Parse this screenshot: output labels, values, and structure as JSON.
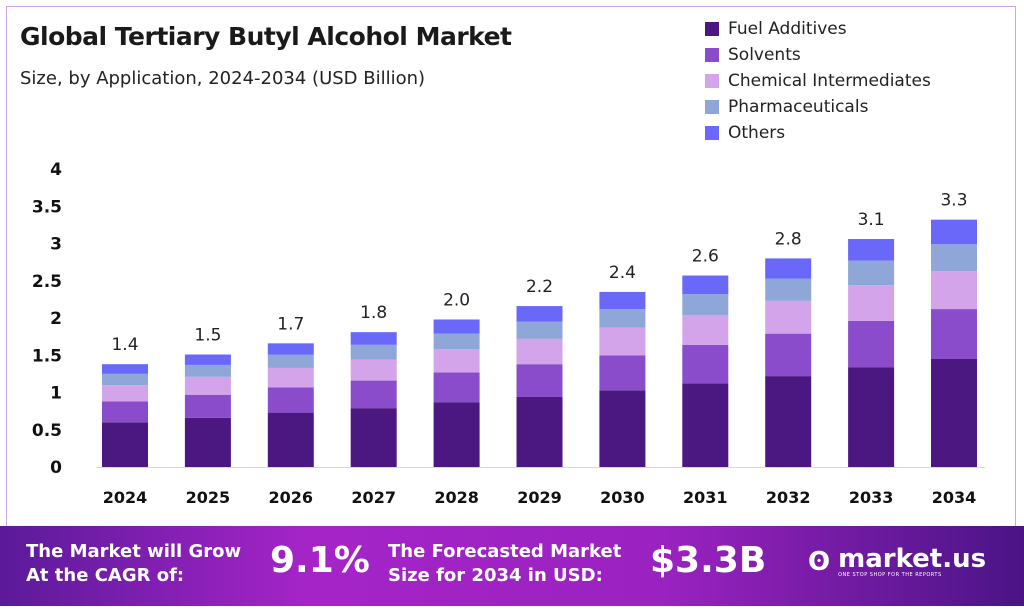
{
  "colors": {
    "Fuel Additives": "#4b1882",
    "Solvents": "#8a4ccb",
    "Chemical Intermediates": "#d3a4ea",
    "Pharmaceuticals": "#8fa6d9",
    "Others": "#6a68f8"
  },
  "chart_data": {
    "type": "bar",
    "stacked": true,
    "title": "Global Tertiary Butyl Alcohol Market",
    "subtitle": "Size, by Application, 2024-2034 (USD Billion)",
    "xlabel": "",
    "ylabel": "",
    "ylim": [
      0,
      4
    ],
    "yticks": [
      "0",
      "0.5",
      "1",
      "1.5",
      "2",
      "2.5",
      "3",
      "3.5",
      "4"
    ],
    "grid": false,
    "legend_position": "top-right",
    "categories": [
      "2024",
      "2025",
      "2026",
      "2027",
      "2028",
      "2029",
      "2030",
      "2031",
      "2032",
      "2033",
      "2034"
    ],
    "series": [
      {
        "name": "Fuel Additives",
        "values": [
          0.6,
          0.66,
          0.73,
          0.79,
          0.87,
          0.94,
          1.03,
          1.12,
          1.22,
          1.34,
          1.45
        ]
      },
      {
        "name": "Solvents",
        "values": [
          0.28,
          0.31,
          0.34,
          0.37,
          0.4,
          0.44,
          0.47,
          0.52,
          0.57,
          0.62,
          0.67
        ]
      },
      {
        "name": "Chemical Intermediates",
        "values": [
          0.22,
          0.24,
          0.26,
          0.28,
          0.31,
          0.34,
          0.37,
          0.4,
          0.44,
          0.48,
          0.51
        ]
      },
      {
        "name": "Pharmaceuticals",
        "values": [
          0.15,
          0.16,
          0.18,
          0.2,
          0.21,
          0.23,
          0.25,
          0.28,
          0.3,
          0.33,
          0.36
        ]
      },
      {
        "name": "Others",
        "values": [
          0.13,
          0.14,
          0.15,
          0.17,
          0.19,
          0.21,
          0.23,
          0.25,
          0.27,
          0.29,
          0.33
        ]
      }
    ],
    "total_labels": [
      "1.4",
      "1.5",
      "1.7",
      "1.8",
      "2.0",
      "2.2",
      "2.4",
      "2.6",
      "2.8",
      "3.1",
      "3.3"
    ]
  },
  "banner": {
    "cagr_text_line1": "The Market will Grow",
    "cagr_text_line2": "At the CAGR of:",
    "cagr_value": "9.1%",
    "forecast_text_line1": "The Forecasted Market",
    "forecast_text_line2": "Size for 2034 in USD:",
    "forecast_value": "$3.3B",
    "logo_name": "market.us",
    "logo_tagline": "ONE STOP SHOP FOR THE REPORTS"
  }
}
